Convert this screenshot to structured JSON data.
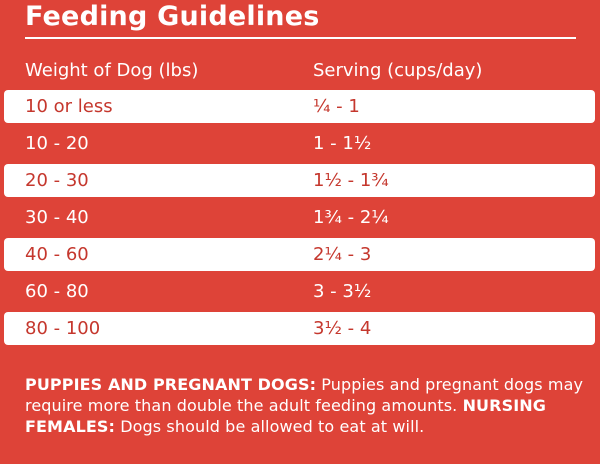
{
  "title": "Feeding Guidelines",
  "columns": {
    "weight": "Weight of Dog (lbs)",
    "serving": "Serving (cups/day)"
  },
  "rows": [
    {
      "weight": "10 or less",
      "serving": "¼ - 1"
    },
    {
      "weight": "10 - 20",
      "serving": "1 - 1½"
    },
    {
      "weight": "20 - 30",
      "serving": "1½ - 1¾"
    },
    {
      "weight": "30 - 40",
      "serving": "1¾ - 2¼"
    },
    {
      "weight": "40 - 60",
      "serving": "2¼ - 3"
    },
    {
      "weight": "60 - 80",
      "serving": "3 - 3½"
    },
    {
      "weight": "80 - 100",
      "serving": "3½ - 4"
    }
  ],
  "note": {
    "puppies_label": "PUPPIES AND PREGNANT DOGS:",
    "puppies_text": " Puppies and pregnant dogs may require more than double the adult feeding amounts. ",
    "nursing_label": "NURSING FEMALES:",
    "nursing_text": " Dogs should be allowed to eat at will."
  },
  "colors": {
    "background": "#de4338",
    "row_highlight": "#ffffff",
    "highlight_text": "#c5372d"
  }
}
